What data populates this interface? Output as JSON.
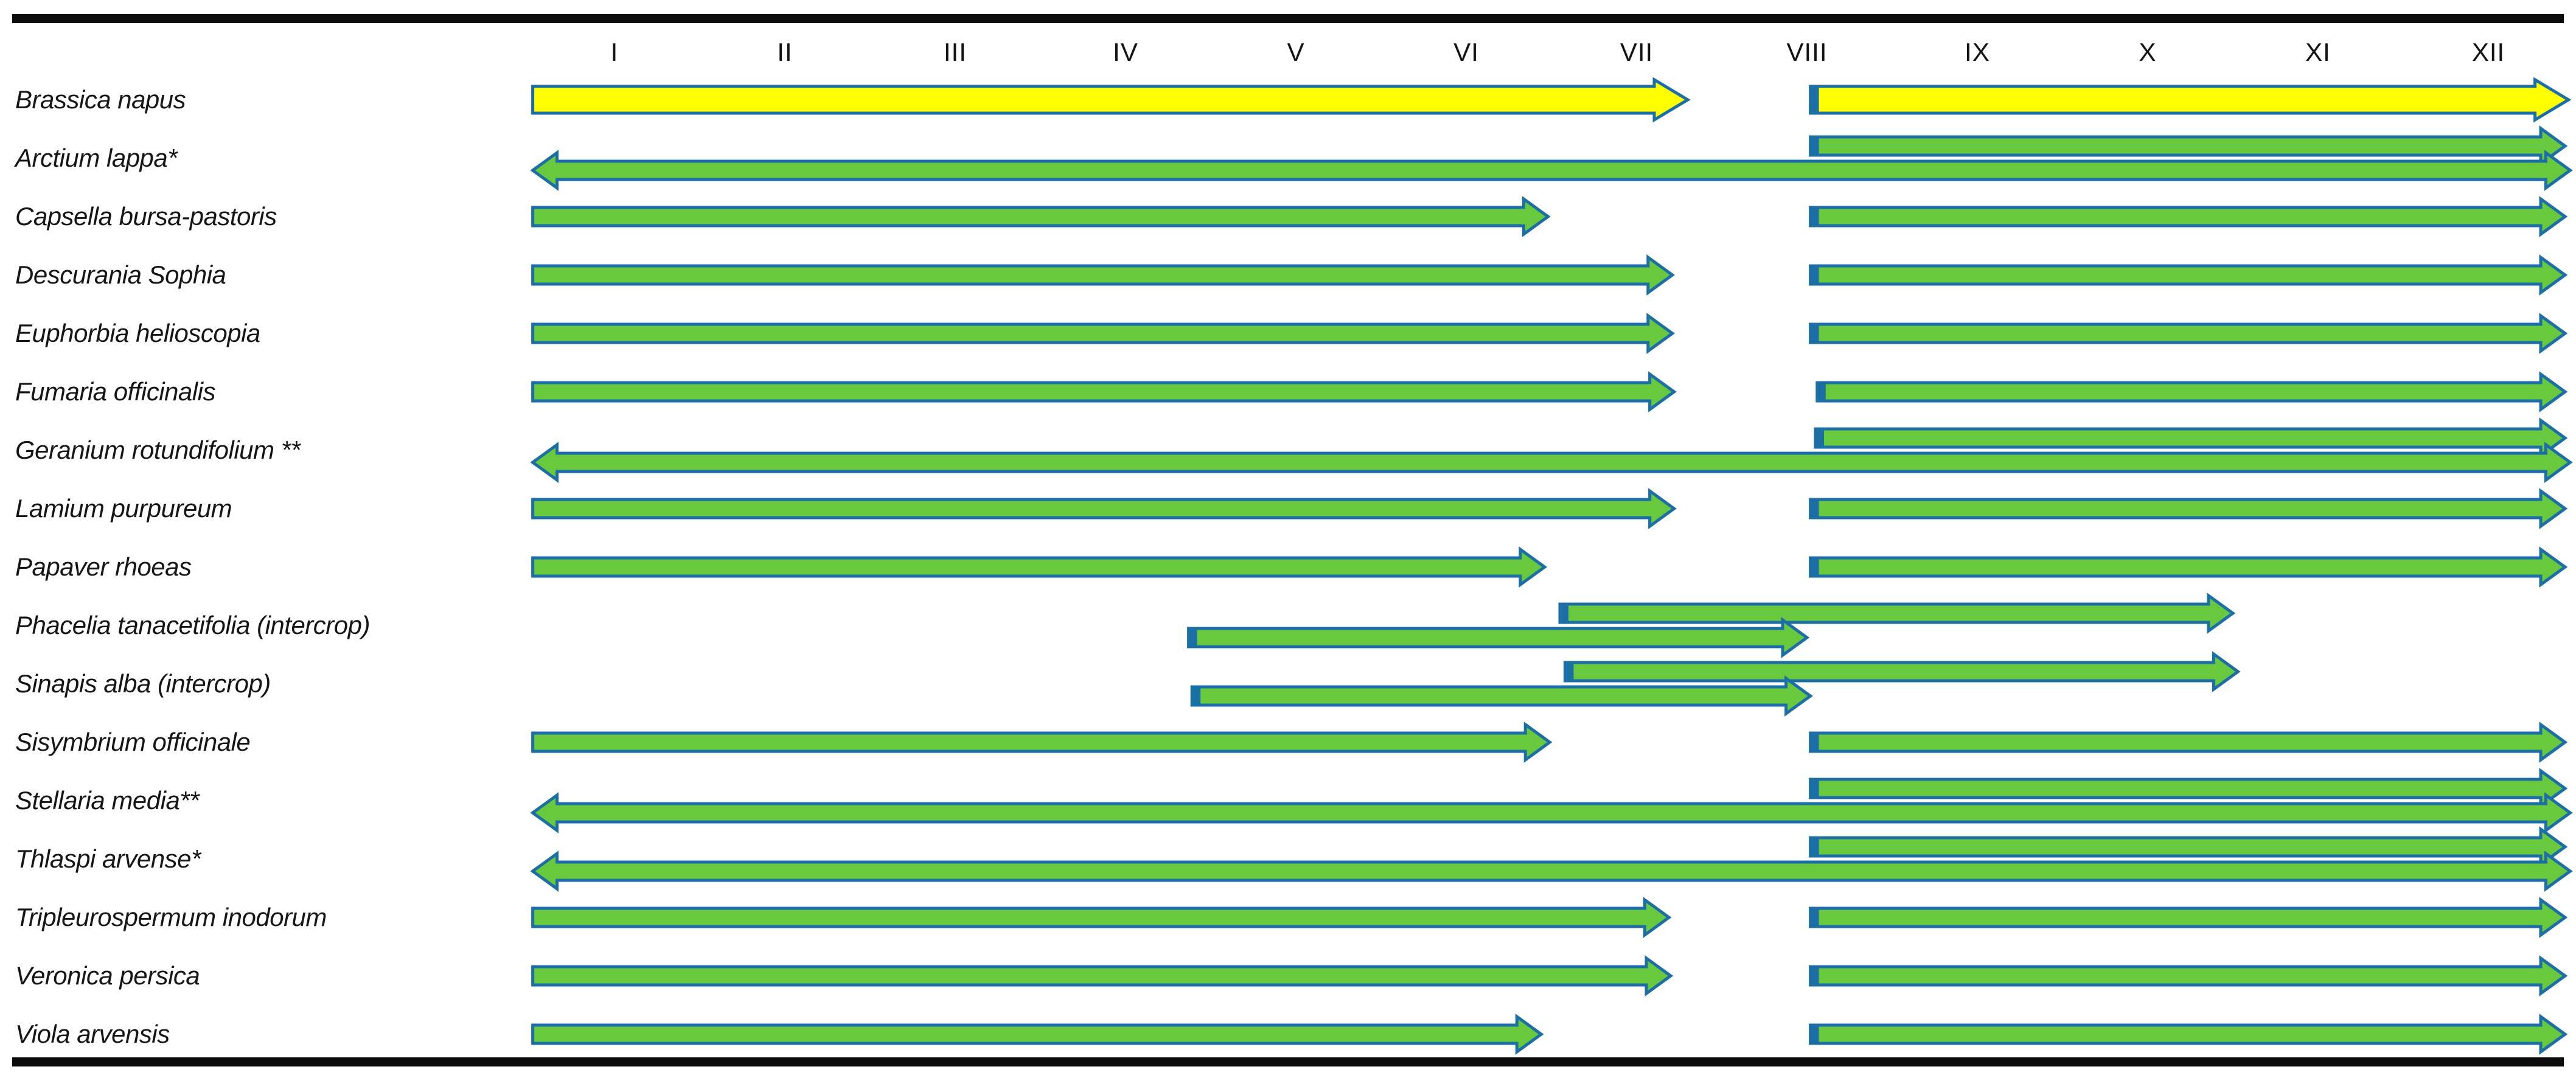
{
  "figure": {
    "description": "Flowering/growth period timeline of crop and weed species across months I-XII"
  },
  "chart_data": {
    "type": "bar",
    "subtype": "gantt-timeline",
    "x_axis": {
      "tick_labels": [
        "I",
        "II",
        "III",
        "IV",
        "V",
        "VI",
        "VII",
        "VIII",
        "IX",
        "X",
        "XI",
        "XII"
      ],
      "range_months": [
        0,
        12
      ],
      "grid": false,
      "position": "top"
    },
    "colors": {
      "yellow": "#FFFF00",
      "green": "#68C83E",
      "outline": "#1C6FA5",
      "frame": "#0B0B0B"
    },
    "categories": [
      "Brassica napus",
      "Arctium lappa*",
      "Capsella bursa-pastoris",
      "Descurania Sophia",
      "Euphorbia helioscopia",
      "Fumaria officinalis",
      "Geranium rotundifolium **",
      "Lamium purpureum",
      "Papaver rhoeas",
      "Phacelia tanacetifolia (intercrop)",
      "Sinapis alba (intercrop)",
      "Sisymbrium officinale",
      "Stellaria media**",
      "Thlaspi arvense*",
      "Tripleurospermum inodorum",
      "Veronica persica",
      "Viola arvensis"
    ],
    "rows": [
      {
        "label": "Brassica napus",
        "arrows": [
          {
            "start": 0.02,
            "end": 6.8,
            "color": "yellow",
            "dir": "right",
            "bar": false,
            "lane": "center"
          },
          {
            "start": 7.52,
            "end": 11.97,
            "color": "yellow",
            "dir": "right",
            "bar": true,
            "lane": "center"
          }
        ]
      },
      {
        "label": "Arctium lappa*",
        "arrows": [
          {
            "start": 7.52,
            "end": 11.95,
            "color": "green",
            "dir": "right",
            "bar": true,
            "lane": "upper"
          },
          {
            "start": 0.02,
            "end": 11.98,
            "color": "green",
            "dir": "both",
            "bar": false,
            "lane": "lower"
          }
        ]
      },
      {
        "label": "Capsella bursa-pastoris",
        "arrows": [
          {
            "start": 0.02,
            "end": 5.98,
            "color": "green",
            "dir": "right",
            "bar": false,
            "lane": "center"
          },
          {
            "start": 7.52,
            "end": 11.95,
            "color": "green",
            "dir": "right",
            "bar": true,
            "lane": "center"
          }
        ]
      },
      {
        "label": "Descurania Sophia",
        "arrows": [
          {
            "start": 0.02,
            "end": 6.71,
            "color": "green",
            "dir": "right",
            "bar": false,
            "lane": "center"
          },
          {
            "start": 7.52,
            "end": 11.95,
            "color": "green",
            "dir": "right",
            "bar": true,
            "lane": "center"
          }
        ]
      },
      {
        "label": "Euphorbia helioscopia",
        "arrows": [
          {
            "start": 0.02,
            "end": 6.71,
            "color": "green",
            "dir": "right",
            "bar": false,
            "lane": "center"
          },
          {
            "start": 7.52,
            "end": 11.95,
            "color": "green",
            "dir": "right",
            "bar": true,
            "lane": "center"
          }
        ]
      },
      {
        "label": "Fumaria officinalis",
        "arrows": [
          {
            "start": 0.02,
            "end": 6.72,
            "color": "green",
            "dir": "right",
            "bar": false,
            "lane": "center"
          },
          {
            "start": 7.56,
            "end": 11.95,
            "color": "green",
            "dir": "right",
            "bar": true,
            "lane": "center"
          }
        ]
      },
      {
        "label": "Geranium rotundifolium **",
        "arrows": [
          {
            "start": 7.55,
            "end": 11.95,
            "color": "green",
            "dir": "right",
            "bar": true,
            "lane": "upper"
          },
          {
            "start": 0.02,
            "end": 11.98,
            "color": "green",
            "dir": "both",
            "bar": false,
            "lane": "lower"
          }
        ]
      },
      {
        "label": "Lamium purpureum",
        "arrows": [
          {
            "start": 0.02,
            "end": 6.72,
            "color": "green",
            "dir": "right",
            "bar": false,
            "lane": "center"
          },
          {
            "start": 7.52,
            "end": 11.95,
            "color": "green",
            "dir": "right",
            "bar": true,
            "lane": "center"
          }
        ]
      },
      {
        "label": "Papaver rhoeas",
        "arrows": [
          {
            "start": 0.02,
            "end": 5.96,
            "color": "green",
            "dir": "right",
            "bar": false,
            "lane": "center"
          },
          {
            "start": 7.52,
            "end": 11.95,
            "color": "green",
            "dir": "right",
            "bar": true,
            "lane": "center"
          }
        ]
      },
      {
        "label": "Phacelia tanacetifolia (intercrop)",
        "arrows": [
          {
            "start": 6.05,
            "end": 10.0,
            "color": "green",
            "dir": "right",
            "bar": true,
            "lane": "upper"
          },
          {
            "start": 3.87,
            "end": 7.5,
            "color": "green",
            "dir": "right",
            "bar": true,
            "lane": "lower"
          }
        ]
      },
      {
        "label": "Sinapis alba (intercrop)",
        "arrows": [
          {
            "start": 6.08,
            "end": 10.03,
            "color": "green",
            "dir": "right",
            "bar": true,
            "lane": "upper"
          },
          {
            "start": 3.89,
            "end": 7.52,
            "color": "green",
            "dir": "right",
            "bar": true,
            "lane": "lower"
          }
        ]
      },
      {
        "label": "Sisymbrium officinale",
        "arrows": [
          {
            "start": 0.02,
            "end": 5.99,
            "color": "green",
            "dir": "right",
            "bar": false,
            "lane": "center"
          },
          {
            "start": 7.52,
            "end": 11.95,
            "color": "green",
            "dir": "right",
            "bar": true,
            "lane": "center"
          }
        ]
      },
      {
        "label": "Stellaria media**",
        "arrows": [
          {
            "start": 7.52,
            "end": 11.95,
            "color": "green",
            "dir": "right",
            "bar": true,
            "lane": "upper"
          },
          {
            "start": 0.02,
            "end": 11.98,
            "color": "green",
            "dir": "both",
            "bar": false,
            "lane": "lower"
          }
        ]
      },
      {
        "label": "Thlaspi arvense*",
        "arrows": [
          {
            "start": 7.52,
            "end": 11.95,
            "color": "green",
            "dir": "right",
            "bar": true,
            "lane": "upper"
          },
          {
            "start": 0.02,
            "end": 11.98,
            "color": "green",
            "dir": "both",
            "bar": false,
            "lane": "lower"
          }
        ]
      },
      {
        "label": "Tripleurospermum inodorum",
        "arrows": [
          {
            "start": 0.02,
            "end": 6.69,
            "color": "green",
            "dir": "right",
            "bar": false,
            "lane": "center"
          },
          {
            "start": 7.52,
            "end": 11.95,
            "color": "green",
            "dir": "right",
            "bar": true,
            "lane": "center"
          }
        ]
      },
      {
        "label": "Veronica persica",
        "arrows": [
          {
            "start": 0.02,
            "end": 6.7,
            "color": "green",
            "dir": "right",
            "bar": false,
            "lane": "center"
          },
          {
            "start": 7.52,
            "end": 11.95,
            "color": "green",
            "dir": "right",
            "bar": true,
            "lane": "center"
          }
        ]
      },
      {
        "label": "Viola arvensis",
        "arrows": [
          {
            "start": 0.02,
            "end": 5.94,
            "color": "green",
            "dir": "right",
            "bar": false,
            "lane": "center"
          },
          {
            "start": 7.52,
            "end": 11.95,
            "color": "green",
            "dir": "right",
            "bar": true,
            "lane": "center"
          }
        ]
      }
    ]
  }
}
